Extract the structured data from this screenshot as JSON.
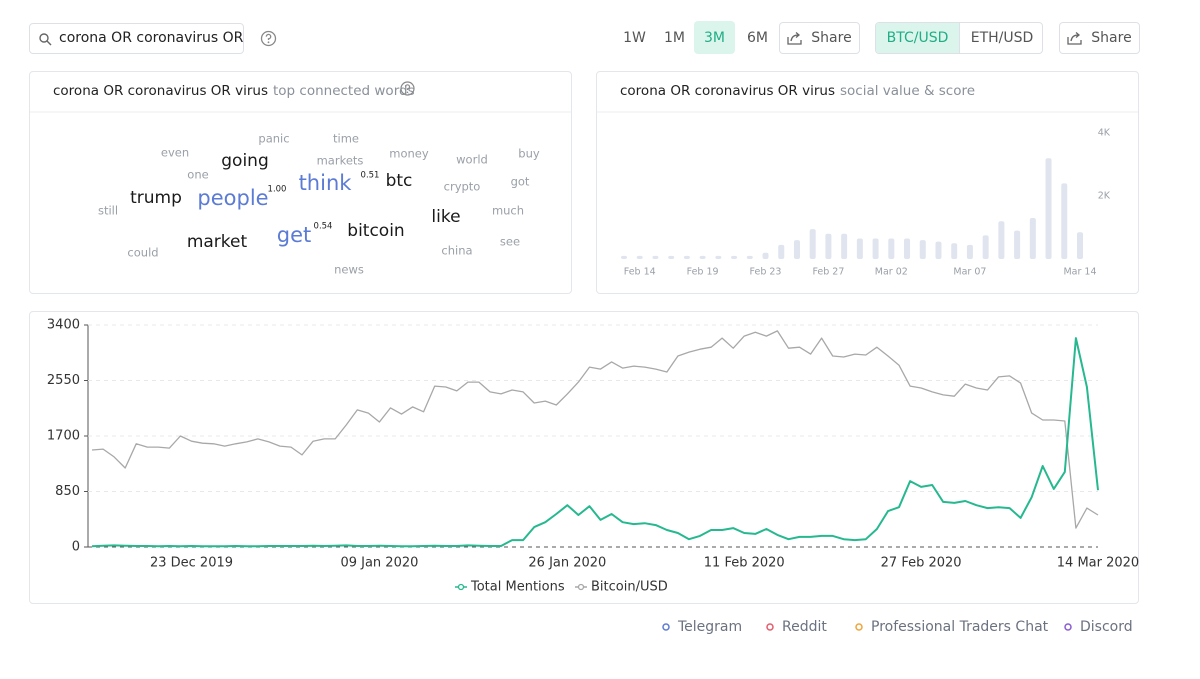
{
  "search": {
    "query": "corona OR coronavirus OR virus"
  },
  "ranges": [
    "1W",
    "1M",
    "3M",
    "6M"
  ],
  "active_range": 2,
  "share": "Share",
  "pairs": [
    "BTC/USD",
    "ETH/USD"
  ],
  "active_pair": 0,
  "share_pair": "Share",
  "word_cloud": {
    "title": "corona OR coronavirus OR virus",
    "subtitle": "top connected words",
    "words": [
      "panic",
      "time",
      "even",
      "going",
      "markets",
      "money",
      "world",
      "buy",
      "one",
      "think",
      "btc",
      "crypto",
      "got",
      "trump",
      "people",
      "still",
      "like",
      "much",
      "market",
      "get",
      "bitcoin",
      "see",
      "could",
      "china",
      "news"
    ],
    "scores": [
      "1.00",
      "0.51",
      "0.54"
    ]
  },
  "chart_data": [
    {
      "type": "bar",
      "title": "corona OR coronavirus OR virus",
      "subtitle": "social value & score",
      "color": "#dfe4ee",
      "categories": [
        null,
        "Feb 14",
        null,
        null,
        null,
        "Feb 19",
        null,
        null,
        null,
        "Feb 23",
        null,
        null,
        null,
        "Feb 27",
        null,
        null,
        null,
        "Mar 02",
        null,
        null,
        null,
        null,
        "Mar 07",
        null,
        null,
        null,
        null,
        null,
        null,
        "Mar 14"
      ],
      "values": [
        100,
        100,
        100,
        100,
        100,
        100,
        100,
        100,
        100,
        200,
        450,
        600,
        950,
        800,
        800,
        650,
        650,
        650,
        650,
        600,
        550,
        500,
        450,
        750,
        1200,
        900,
        1300,
        3200,
        2400,
        850
      ],
      "ylim": [
        0,
        4000
      ],
      "yticks": [
        {
          "value": 2000,
          "label": "2K"
        },
        {
          "value": 4000,
          "label": "4K"
        }
      ]
    },
    {
      "type": "line",
      "grid": true,
      "x": [
        null,
        null,
        null,
        null,
        null,
        null,
        null,
        null,
        null,
        "23 Dec 2019",
        null,
        null,
        null,
        null,
        null,
        null,
        null,
        null,
        null,
        null,
        null,
        null,
        null,
        null,
        null,
        null,
        "09 Jan 2020",
        null,
        null,
        null,
        null,
        null,
        null,
        null,
        null,
        null,
        null,
        null,
        null,
        null,
        null,
        null,
        null,
        "26 Jan 2020",
        null,
        null,
        null,
        null,
        null,
        null,
        null,
        null,
        null,
        null,
        null,
        null,
        null,
        null,
        null,
        "11 Feb 2020",
        null,
        null,
        null,
        null,
        null,
        null,
        null,
        null,
        null,
        null,
        null,
        null,
        null,
        null,
        null,
        "27 Feb 2020",
        null,
        null,
        null,
        null,
        null,
        null,
        null,
        null,
        null,
        null,
        null,
        null,
        null,
        null,
        null,
        "14 Mar 2020"
      ],
      "ylim": [
        0,
        3400
      ],
      "yticks": [
        0,
        850,
        1700,
        2550,
        3400
      ],
      "series": [
        {
          "name": "Total Mentions",
          "color": "#26b88f",
          "values": [
            10,
            20,
            25,
            20,
            15,
            15,
            10,
            15,
            10,
            15,
            10,
            10,
            10,
            15,
            10,
            10,
            15,
            15,
            15,
            15,
            20,
            15,
            20,
            25,
            15,
            15,
            20,
            15,
            10,
            10,
            15,
            20,
            15,
            15,
            25,
            20,
            15,
            15,
            105,
            105,
            305,
            380,
            505,
            640,
            490,
            625,
            415,
            505,
            380,
            350,
            365,
            335,
            260,
            215,
            120,
            170,
            260,
            260,
            290,
            215,
            200,
            275,
            185,
            120,
            155,
            155,
            170,
            170,
            120,
            105,
            120,
            275,
            550,
            610,
            1010,
            920,
            950,
            690,
            675,
            705,
            640,
            595,
            610,
            595,
            445,
            765,
            1240,
            890,
            1150,
            3200,
            2450,
            870
          ]
        },
        {
          "name": "Bitcoin/USD",
          "color": "#a8a8a8",
          "values": [
            1485,
            1500,
            1380,
            1210,
            1580,
            1530,
            1530,
            1515,
            1700,
            1620,
            1590,
            1580,
            1545,
            1580,
            1610,
            1655,
            1610,
            1545,
            1530,
            1410,
            1620,
            1655,
            1655,
            1870,
            2100,
            2050,
            1915,
            2130,
            2035,
            2145,
            2070,
            2465,
            2450,
            2390,
            2525,
            2525,
            2375,
            2345,
            2405,
            2375,
            2205,
            2235,
            2175,
            2345,
            2525,
            2755,
            2725,
            2835,
            2740,
            2770,
            2755,
            2725,
            2680,
            2925,
            2985,
            3030,
            3060,
            3200,
            3045,
            3230,
            3290,
            3230,
            3310,
            3045,
            3060,
            2955,
            3200,
            2925,
            2910,
            2955,
            2940,
            3060,
            2925,
            2785,
            2465,
            2435,
            2375,
            2330,
            2310,
            2495,
            2435,
            2405,
            2605,
            2620,
            2510,
            2050,
            1945,
            1945,
            1930,
            290,
            595,
            490
          ]
        }
      ]
    }
  ],
  "sources": [
    {
      "name": "Telegram",
      "color": "#5b7bd5"
    },
    {
      "name": "Reddit",
      "color": "#e55b6a"
    },
    {
      "name": "Professional Traders Chat",
      "color": "#f0a43c"
    },
    {
      "name": "Discord",
      "color": "#8a5bd5"
    }
  ]
}
